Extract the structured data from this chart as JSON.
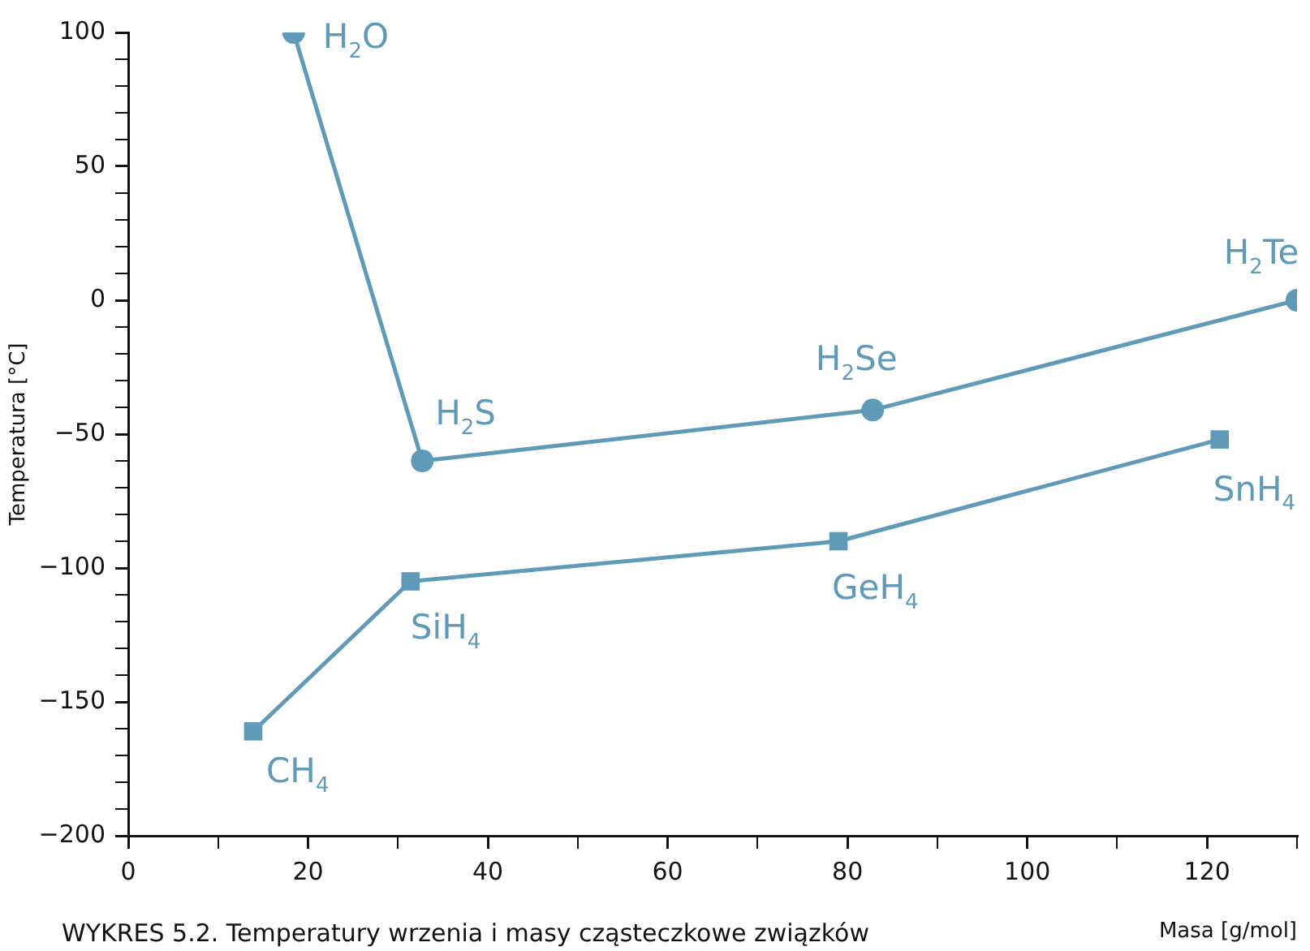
{
  "chart_data": {
    "type": "line",
    "xlabel": "Masa [g/mol]",
    "ylabel": "Temperatura [°C]",
    "xlim": [
      0,
      130
    ],
    "ylim": [
      -200,
      100
    ],
    "xticks": [
      0,
      {
        "value": 10,
        "label": null
      },
      20,
      {
        "value": 30,
        "label": null
      },
      40,
      {
        "value": 50,
        "label": null
      },
      60,
      {
        "value": 70,
        "label": null
      },
      80,
      {
        "value": 90,
        "label": null
      },
      100,
      {
        "value": 110,
        "label": null
      },
      120,
      {
        "value": 130,
        "label": null
      }
    ],
    "yticks": [
      -200,
      {
        "value": -190,
        "label": null
      },
      {
        "value": -180,
        "label": null
      },
      {
        "value": -170,
        "label": null
      },
      {
        "value": -160,
        "label": null
      },
      -150,
      {
        "value": -140,
        "label": null
      },
      {
        "value": -130,
        "label": null
      },
      {
        "value": -120,
        "label": null
      },
      {
        "value": -110,
        "label": null
      },
      -100,
      {
        "value": -90,
        "label": null
      },
      {
        "value": -80,
        "label": null
      },
      {
        "value": -70,
        "label": null
      },
      {
        "value": -60,
        "label": null
      },
      -50,
      {
        "value": -40,
        "label": null
      },
      {
        "value": -30,
        "label": null
      },
      {
        "value": -20,
        "label": null
      },
      {
        "value": -10,
        "label": null
      },
      0,
      {
        "value": 10,
        "label": null
      },
      {
        "value": 20,
        "label": null
      },
      {
        "value": 30,
        "label": null
      },
      {
        "value": 40,
        "label": null
      },
      50,
      {
        "value": 60,
        "label": null
      },
      {
        "value": 70,
        "label": null
      },
      {
        "value": 80,
        "label": null
      },
      {
        "value": 90,
        "label": null
      },
      100
    ],
    "grid": false,
    "legend": false,
    "line_style": "solid",
    "series": [
      {
        "color": "#5f9ab8",
        "marker": "circle",
        "x": [
          18.4,
          32.7,
          82.8,
          130
        ],
        "values": [
          100,
          -60,
          -41,
          0
        ]
      },
      {
        "color": "#5f9ab8",
        "marker": "square",
        "x": [
          13.9,
          31.4,
          79,
          121.4
        ],
        "values": [
          -161,
          -105,
          -90,
          -52
        ]
      }
    ],
    "annotations": [
      {
        "text": "H$_{2}$O",
        "x": 18.4,
        "y": 100
      },
      {
        "text": "H$_{2}$S",
        "x": 32.7,
        "y": -60
      },
      {
        "text": "H$_{2}$Se",
        "x": 82.8,
        "y": -41
      },
      {
        "text": "H$_{2}$Te",
        "x": 130,
        "y": 0
      },
      {
        "text": "CH$_{4}$",
        "x": 13.9,
        "y": -161
      },
      {
        "text": "SiH$_{4}$",
        "x": 31.4,
        "y": -105
      },
      {
        "text": "GeH$_{4}$",
        "x": 79,
        "y": -90
      },
      {
        "text": "SnH$_{4}$",
        "x": 121.4,
        "y": -52
      },
      "WYKRES 5.2. Temperatury wrzenia i masy cząsteczkowe związków"
    ]
  }
}
